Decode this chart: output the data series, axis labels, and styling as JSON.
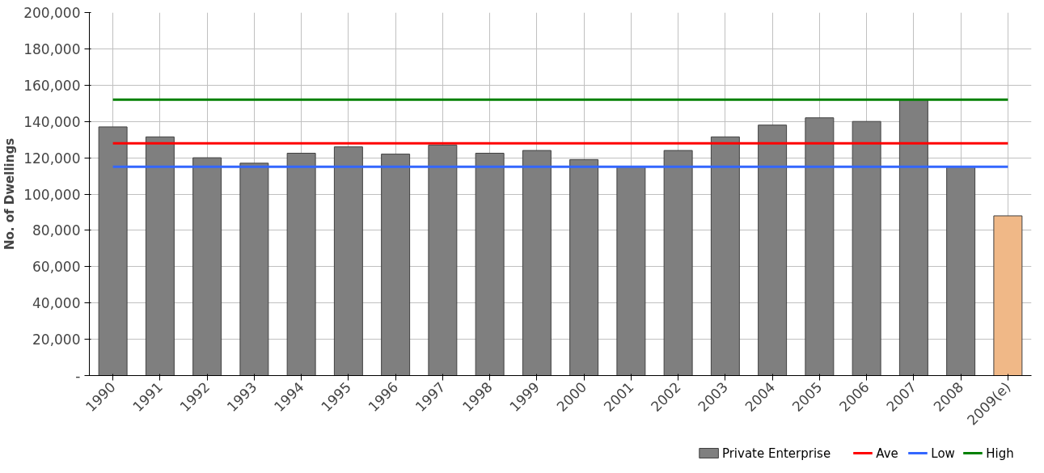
{
  "chart_data": {
    "type": "bar",
    "ylabel": "No. of Dwellings",
    "categories": [
      "1990",
      "1991",
      "1992",
      "1993",
      "1994",
      "1995",
      "1996",
      "1997",
      "1998",
      "1999",
      "2000",
      "2001",
      "2002",
      "2003",
      "2004",
      "2005",
      "2006",
      "2007",
      "2008",
      "2009(e)"
    ],
    "series": [
      {
        "name": "Private Enterprise",
        "color": "#7f7f7f",
        "colors": [
          "#7f7f7f",
          "#7f7f7f",
          "#7f7f7f",
          "#7f7f7f",
          "#7f7f7f",
          "#7f7f7f",
          "#7f7f7f",
          "#7f7f7f",
          "#7f7f7f",
          "#7f7f7f",
          "#7f7f7f",
          "#7f7f7f",
          "#7f7f7f",
          "#7f7f7f",
          "#7f7f7f",
          "#7f7f7f",
          "#7f7f7f",
          "#7f7f7f",
          "#7f7f7f",
          "#f0b887"
        ],
        "values": [
          137000,
          131500,
          120000,
          117000,
          122500,
          126000,
          122000,
          127000,
          122500,
          124000,
          119000,
          115000,
          124000,
          131500,
          138000,
          142000,
          140000,
          152000,
          115000,
          88000
        ]
      },
      {
        "name": "Ave",
        "type": "line",
        "color": "#ff0000",
        "values": [
          128000,
          128000,
          128000,
          128000,
          128000,
          128000,
          128000,
          128000,
          128000,
          128000,
          128000,
          128000,
          128000,
          128000,
          128000,
          128000,
          128000,
          128000,
          128000,
          128000
        ]
      },
      {
        "name": "Low",
        "type": "line",
        "color": "#3366ff",
        "values": [
          115000,
          115000,
          115000,
          115000,
          115000,
          115000,
          115000,
          115000,
          115000,
          115000,
          115000,
          115000,
          115000,
          115000,
          115000,
          115000,
          115000,
          115000,
          115000,
          115000
        ]
      },
      {
        "name": "High",
        "type": "line",
        "color": "#008000",
        "values": [
          152000,
          152000,
          152000,
          152000,
          152000,
          152000,
          152000,
          152000,
          152000,
          152000,
          152000,
          152000,
          152000,
          152000,
          152000,
          152000,
          152000,
          152000,
          152000,
          152000
        ]
      }
    ],
    "ylim": [
      0,
      200000
    ],
    "yticks": [
      {
        "value": 0,
        "label": "-"
      },
      {
        "value": 20000,
        "label": "20,000"
      },
      {
        "value": 40000,
        "label": "40,000"
      },
      {
        "value": 60000,
        "label": "60,000"
      },
      {
        "value": 80000,
        "label": "80,000"
      },
      {
        "value": 100000,
        "label": "100,000"
      },
      {
        "value": 120000,
        "label": "120,000"
      },
      {
        "value": 140000,
        "label": "140,000"
      },
      {
        "value": 160000,
        "label": "160,000"
      },
      {
        "value": 180000,
        "label": "180,000"
      },
      {
        "value": 200000,
        "label": "200,000"
      }
    ],
    "grid": true,
    "legend": "bottom right"
  }
}
